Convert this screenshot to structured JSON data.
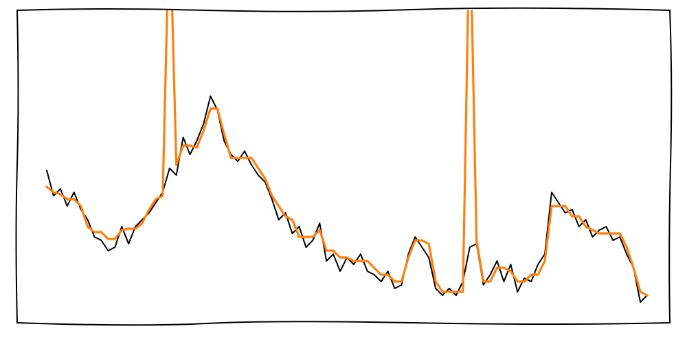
{
  "chart_data": {
    "type": "line",
    "x": [
      0,
      1,
      2,
      3,
      4,
      5,
      6,
      7,
      8,
      9,
      10,
      11,
      12,
      13,
      14,
      15,
      16,
      17,
      18,
      19,
      20,
      21,
      22,
      23,
      24,
      25,
      26,
      27,
      28,
      29,
      30,
      31,
      32,
      33,
      34,
      35,
      36,
      37,
      38,
      39,
      40,
      41,
      42,
      43,
      44,
      45,
      46,
      47,
      48,
      49,
      50,
      51,
      52,
      53,
      54,
      55,
      56,
      57,
      58,
      59,
      60,
      61,
      62,
      63,
      64,
      65,
      66,
      67,
      68,
      69,
      70,
      71,
      72,
      73,
      74,
      75,
      76,
      77,
      78,
      79,
      80,
      81,
      82,
      83,
      84,
      85,
      86,
      87,
      88
    ],
    "xlim": [
      0,
      88
    ],
    "ylim": [
      0,
      455
    ],
    "series": [
      {
        "color": "#000000",
        "values": [
          222,
          185,
          195,
          170,
          190,
          165,
          150,
          125,
          120,
          105,
          110,
          140,
          115,
          140,
          150,
          160,
          175,
          190,
          225,
          215,
          270,
          245,
          265,
          290,
          330,
          310,
          265,
          245,
          235,
          250,
          230,
          215,
          205,
          180,
          150,
          160,
          130,
          140,
          110,
          120,
          145,
          90,
          100,
          75,
          95,
          85,
          100,
          75,
          70,
          60,
          75,
          50,
          55,
          100,
          125,
          110,
          95,
          50,
          40,
          50,
          40,
          60,
          110,
          115,
          55,
          70,
          90,
          60,
          85,
          45,
          65,
          60,
          85,
          100,
          190,
          175,
          160,
          165,
          140,
          150,
          125,
          135,
          140,
          120,
          125,
          100,
          80,
          30,
          40
        ]
      },
      {
        "color": "#ff7f0e",
        "values": [
          198,
          190,
          187,
          180,
          180,
          170,
          140,
          132,
          132,
          122,
          122,
          135,
          137,
          137,
          145,
          165,
          180,
          185,
          600,
          230,
          258,
          258,
          255,
          280,
          312,
          312,
          275,
          240,
          240,
          240,
          240,
          225,
          210,
          185,
          170,
          155,
          150,
          125,
          125,
          125,
          135,
          105,
          105,
          95,
          95,
          90,
          90,
          90,
          80,
          70,
          70,
          60,
          60,
          95,
          120,
          120,
          115,
          60,
          45,
          45,
          45,
          45,
          600,
          120,
          60,
          60,
          80,
          80,
          75,
          60,
          60,
          70,
          70,
          90,
          170,
          170,
          170,
          155,
          155,
          140,
          135,
          130,
          130,
          130,
          130,
          110,
          80,
          45,
          40
        ]
      }
    ]
  }
}
